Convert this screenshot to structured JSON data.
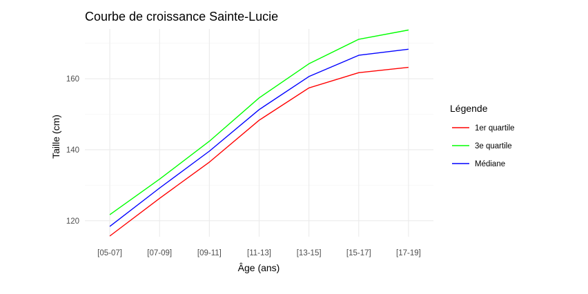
{
  "chart_data": {
    "type": "line",
    "title": "Courbe de croissance Sainte-Lucie",
    "xlabel": "Âge (ans)",
    "ylabel": "Taille (cm)",
    "categories": [
      "[05-07]",
      "[07-09]",
      "[09-11]",
      "[11-13]",
      "[13-15]",
      "[15-17]",
      "[17-19]"
    ],
    "ylim": [
      115.5,
      174
    ],
    "yticks": [
      120,
      140,
      160
    ],
    "grid": true,
    "legend": {
      "title": "Légende",
      "position": "right"
    },
    "series": [
      {
        "name": "1er quartile",
        "color": "#ff0000",
        "values": [
          115.7,
          126.3,
          136.5,
          148.3,
          157.4,
          161.7,
          163.2
        ]
      },
      {
        "name": "3e quartile",
        "color": "#00ff00",
        "values": [
          121.7,
          131.7,
          142.4,
          154.6,
          164.2,
          171.1,
          173.7
        ]
      },
      {
        "name": "Médiane",
        "color": "#0000ff",
        "values": [
          118.4,
          129.2,
          139.6,
          151.3,
          160.6,
          166.6,
          168.3
        ]
      }
    ]
  }
}
